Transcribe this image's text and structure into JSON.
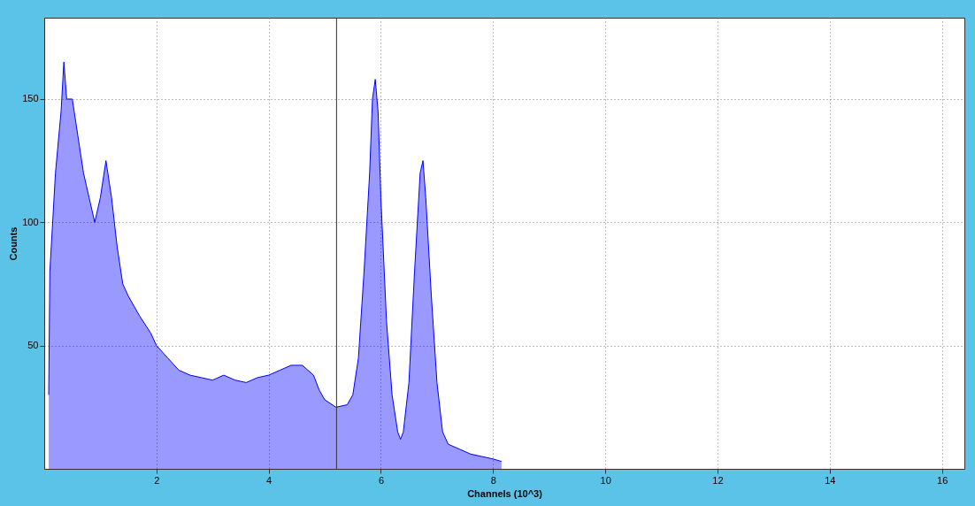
{
  "chart_data": {
    "type": "area",
    "xlabel": "Channels (10^3)",
    "ylabel": "Counts",
    "xlim": [
      0,
      16.4
    ],
    "ylim": [
      0,
      183
    ],
    "xticks": [
      2,
      4,
      6,
      8,
      10,
      12,
      14,
      16
    ],
    "yticks": [
      50,
      100,
      150
    ],
    "grid": true,
    "x": [
      0.08,
      0.1,
      0.2,
      0.3,
      0.35,
      0.4,
      0.5,
      0.6,
      0.7,
      0.8,
      0.9,
      1.0,
      1.1,
      1.2,
      1.3,
      1.4,
      1.5,
      1.7,
      1.9,
      2.0,
      2.2,
      2.4,
      2.6,
      2.8,
      3.0,
      3.2,
      3.4,
      3.6,
      3.8,
      4.0,
      4.2,
      4.4,
      4.6,
      4.8,
      4.9,
      5.0,
      5.2,
      5.4,
      5.5,
      5.6,
      5.7,
      5.8,
      5.85,
      5.9,
      5.95,
      6.0,
      6.1,
      6.2,
      6.3,
      6.35,
      6.4,
      6.5,
      6.6,
      6.7,
      6.75,
      6.8,
      6.9,
      7.0,
      7.1,
      7.2,
      7.4,
      7.6,
      7.8,
      8.0,
      8.15
    ],
    "series": [
      {
        "color": "#0000ff",
        "values": [
          30,
          80,
          120,
          145,
          165,
          150,
          150,
          135,
          120,
          110,
          100,
          110,
          125,
          110,
          90,
          75,
          70,
          62,
          55,
          50,
          45,
          40,
          38,
          37,
          36,
          38,
          36,
          35,
          37,
          38,
          40,
          42,
          42,
          38,
          32,
          28,
          25,
          26,
          30,
          45,
          80,
          120,
          150,
          158,
          145,
          110,
          60,
          30,
          15,
          12,
          15,
          35,
          80,
          120,
          125,
          110,
          70,
          35,
          15,
          10,
          8,
          6,
          5,
          4,
          3
        ]
      }
    ],
    "ref_lines": [
      {
        "axis": "x",
        "value": 5.21,
        "color": "#333333"
      }
    ]
  }
}
